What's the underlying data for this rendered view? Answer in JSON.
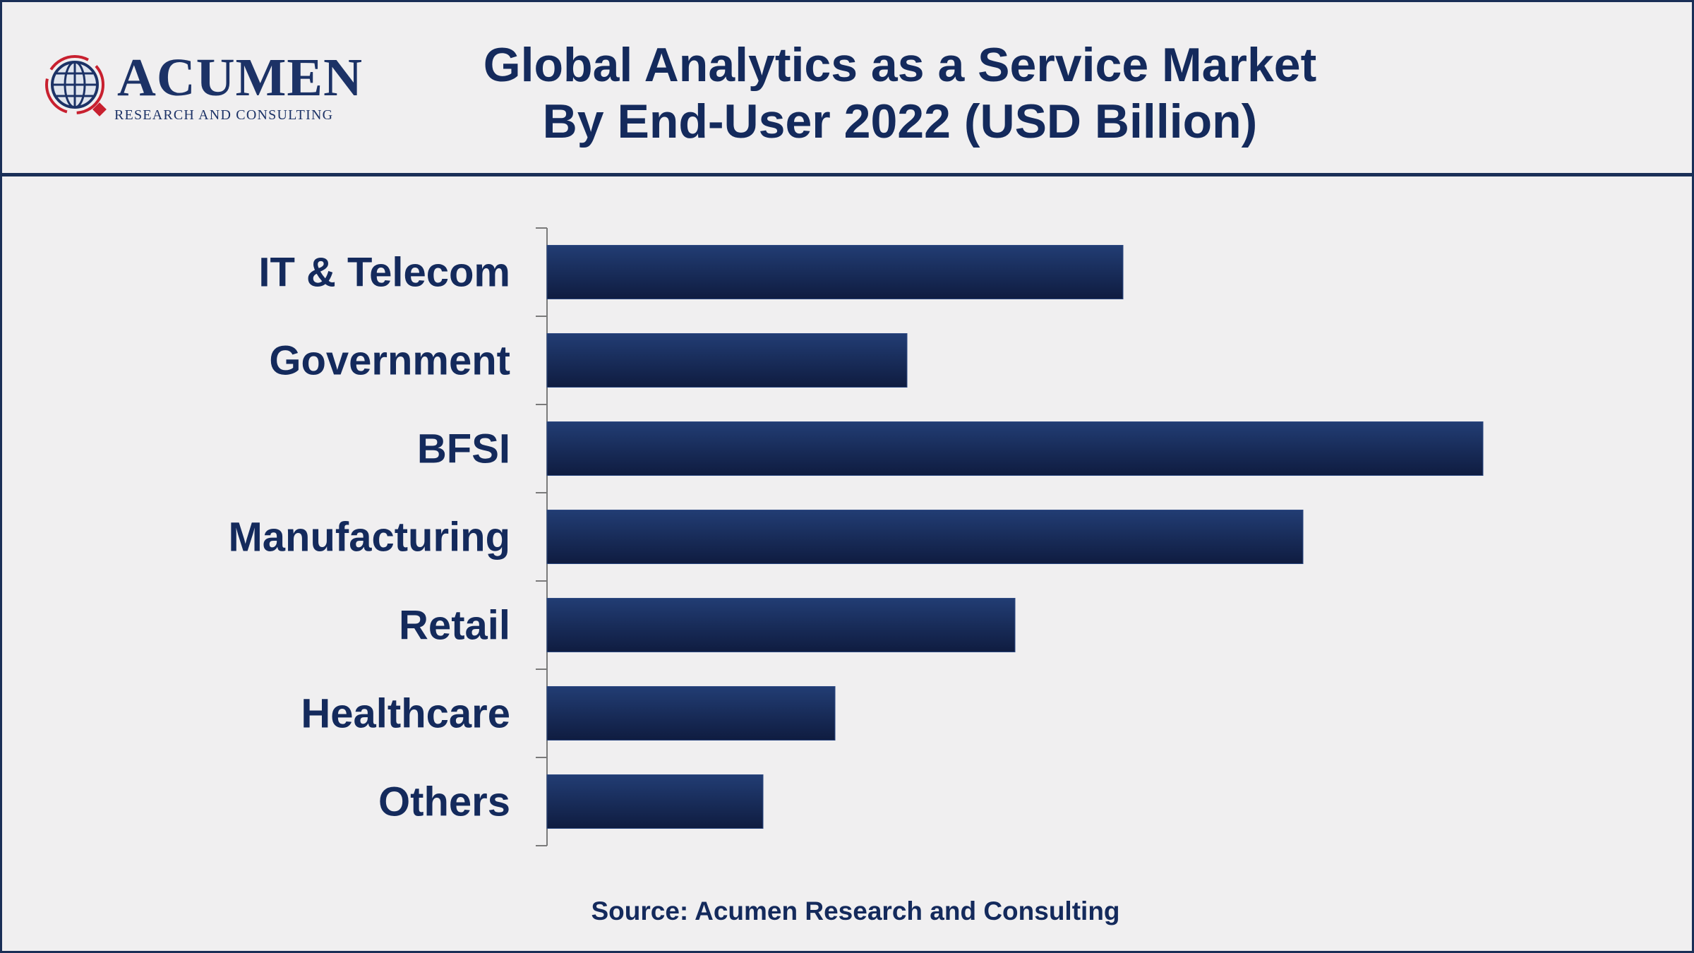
{
  "brand": {
    "name": "ACUMEN",
    "tagline": "RESEARCH AND CONSULTING"
  },
  "title_line1": "Global Analytics as a Service Market",
  "title_line2": "By End-User 2022 (USD Billion)",
  "source": "Source: Acumen Research and Consulting",
  "colors": {
    "bar_top": "#223d74",
    "bar_bottom": "#0f1c40",
    "text": "#142a5c",
    "border": "#1a2f57"
  },
  "chart_data": {
    "type": "bar",
    "orientation": "horizontal",
    "title": "Global Analytics as a Service Market By End-User 2022 (USD Billion)",
    "categories": [
      "IT & Telecom",
      "Government",
      "BFSI",
      "Manufacturing",
      "Retail",
      "Healthcare",
      "Others"
    ],
    "values": [
      3.2,
      2.0,
      5.2,
      4.2,
      2.6,
      1.6,
      1.2
    ],
    "xlim": [
      0,
      6
    ],
    "grid": false,
    "legend": "none"
  }
}
